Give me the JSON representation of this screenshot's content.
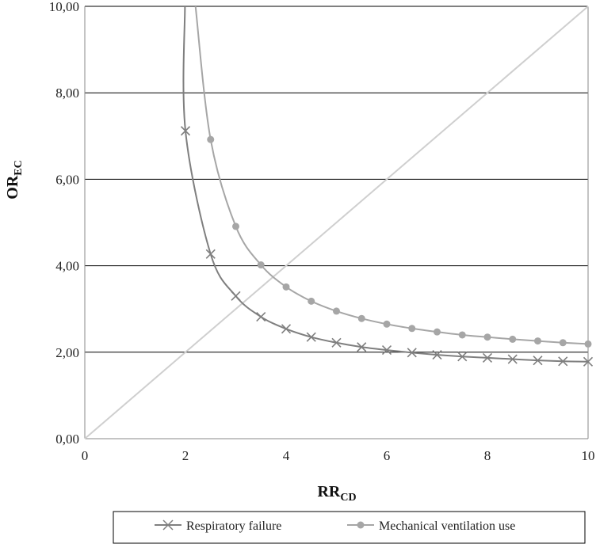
{
  "chart_data": {
    "type": "line",
    "xlabel": "RR",
    "xlabel_sub": "CD",
    "ylabel": "OR",
    "ylabel_sub": "EC",
    "xlim": [
      0,
      10
    ],
    "ylim": [
      0,
      10
    ],
    "x_ticks": [
      0,
      2,
      4,
      6,
      8,
      10
    ],
    "x_tick_labels": [
      "0",
      "2",
      "4",
      "6",
      "8",
      "10"
    ],
    "y_ticks": [
      0,
      2,
      4,
      6,
      8,
      10
    ],
    "y_tick_labels": [
      "0,00",
      "2,00",
      "4,00",
      "6,00",
      "8,00",
      "10,00"
    ],
    "grid": "horizontal",
    "legend_position": "bottom",
    "colors": {
      "respiratory_failure": "#7f7f7f",
      "mechanical_ventilation": "#a6a6a6",
      "reference_line": "#cfcfcf",
      "grid": "#000000"
    },
    "series": [
      {
        "name": "Respiratory failure",
        "marker": "x",
        "x": [
          2,
          2.5,
          3,
          3.5,
          4,
          4.5,
          5,
          5.5,
          6,
          6.5,
          7,
          7.5,
          8,
          8.5,
          9,
          9.5,
          10
        ],
        "y": [
          7.12,
          4.27,
          3.3,
          2.82,
          2.54,
          2.35,
          2.22,
          2.12,
          2.05,
          1.99,
          1.94,
          1.9,
          1.87,
          1.84,
          1.81,
          1.79,
          1.78
        ]
      },
      {
        "name": "Mechanical ventilation use",
        "marker": "circle",
        "x": [
          2.5,
          3,
          3.5,
          4,
          4.5,
          5,
          5.5,
          6,
          6.5,
          7,
          7.5,
          8,
          8.5,
          9,
          9.5,
          10
        ],
        "y": [
          6.92,
          4.91,
          4.02,
          3.51,
          3.18,
          2.95,
          2.78,
          2.65,
          2.55,
          2.47,
          2.4,
          2.35,
          2.3,
          2.26,
          2.22,
          2.19
        ]
      },
      {
        "x": [
          0,
          10
        ],
        "y": [
          0,
          10
        ]
      }
    ]
  }
}
